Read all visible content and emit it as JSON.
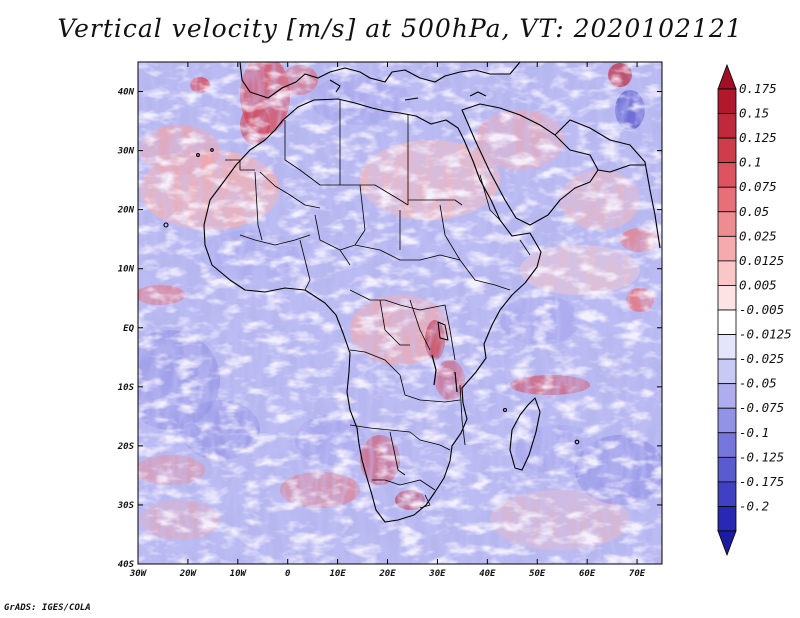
{
  "title": "Vertical velocity [m/s] at 500hPa, VT: 2020102121",
  "credit": "GrADS: IGES/COLA",
  "map": {
    "lon_range": [
      -30,
      75
    ],
    "lat_range": [
      -40,
      45
    ],
    "lat_ticks": [
      {
        "label": "40N",
        "value": 40
      },
      {
        "label": "30N",
        "value": 30
      },
      {
        "label": "20N",
        "value": 20
      },
      {
        "label": "10N",
        "value": 10
      },
      {
        "label": "EQ",
        "value": 0
      },
      {
        "label": "10S",
        "value": -10
      },
      {
        "label": "20S",
        "value": -20
      },
      {
        "label": "30S",
        "value": -30
      },
      {
        "label": "40S",
        "value": -40
      }
    ],
    "lon_ticks": [
      {
        "label": "30W",
        "value": -30
      },
      {
        "label": "20W",
        "value": -20
      },
      {
        "label": "10W",
        "value": -10
      },
      {
        "label": "0",
        "value": 0
      },
      {
        "label": "10E",
        "value": 10
      },
      {
        "label": "20E",
        "value": 20
      },
      {
        "label": "30E",
        "value": 30
      },
      {
        "label": "40E",
        "value": 40
      },
      {
        "label": "50E",
        "value": 50
      },
      {
        "label": "60E",
        "value": 60
      },
      {
        "label": "70E",
        "value": 70
      }
    ]
  },
  "colorbar": {
    "bins": [
      {
        "label": "0.175",
        "color": "#b2182b"
      },
      {
        "label": "0.15",
        "color": "#c0283b"
      },
      {
        "label": "0.125",
        "color": "#cf3c4b"
      },
      {
        "label": "0.1",
        "color": "#dd5460"
      },
      {
        "label": "0.075",
        "color": "#e76f78"
      },
      {
        "label": "0.05",
        "color": "#ef8c92"
      },
      {
        "label": "0.025",
        "color": "#f5aaae"
      },
      {
        "label": "0.0125",
        "color": "#fac7c9"
      },
      {
        "label": "0.005",
        "color": "#fde3e4"
      },
      {
        "label": "-0.005",
        "color": "#ffffff"
      },
      {
        "label": "-0.0125",
        "color": "#e4e4fb"
      },
      {
        "label": "-0.025",
        "color": "#c9c9f5"
      },
      {
        "label": "-0.05",
        "color": "#aeaeef"
      },
      {
        "label": "-0.075",
        "color": "#9292e6"
      },
      {
        "label": "-0.1",
        "color": "#7676dc"
      },
      {
        "label": "-0.125",
        "color": "#5b5bd0"
      },
      {
        "label": "-0.175",
        "color": "#4040c3"
      },
      {
        "label": "-0.2",
        "color": "#2828b2"
      }
    ],
    "top_arrow_color": "#a01024",
    "bottom_arrow_color": "#1c1ca0"
  }
}
